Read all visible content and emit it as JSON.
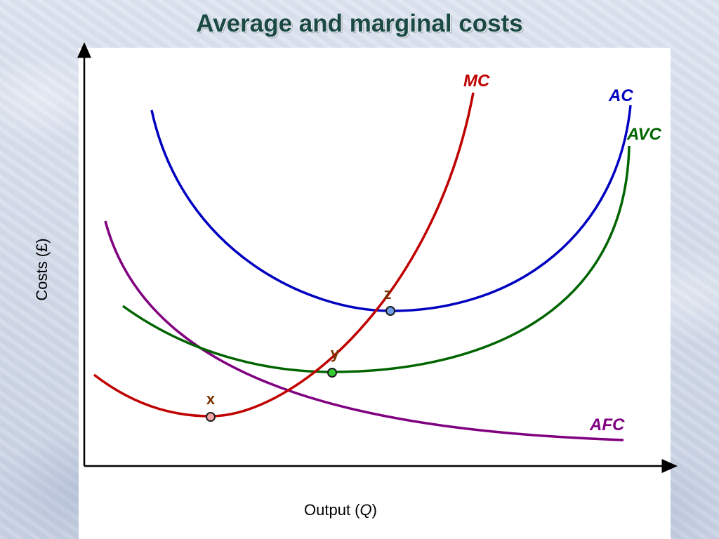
{
  "title": "Average and marginal costs",
  "axes": {
    "y_label": "Costs (£)",
    "x_label_prefix": "Output (",
    "x_label_var": "Q",
    "x_label_suffix": ")"
  },
  "curves": [
    {
      "label": "MC",
      "color": "#c00000"
    },
    {
      "label": "AC",
      "color": "#0000c0"
    },
    {
      "label": "AVC",
      "color": "#006400"
    },
    {
      "label": "AFC",
      "color": "#800080"
    }
  ],
  "points": [
    {
      "label": "x",
      "fill": "#f4a6a6",
      "label_color": "#7a3300"
    },
    {
      "label": "y",
      "fill": "#33cc33",
      "label_color": "#7a3300"
    },
    {
      "label": "z",
      "fill": "#6f9ee8",
      "label_color": "#7a3300"
    }
  ]
}
